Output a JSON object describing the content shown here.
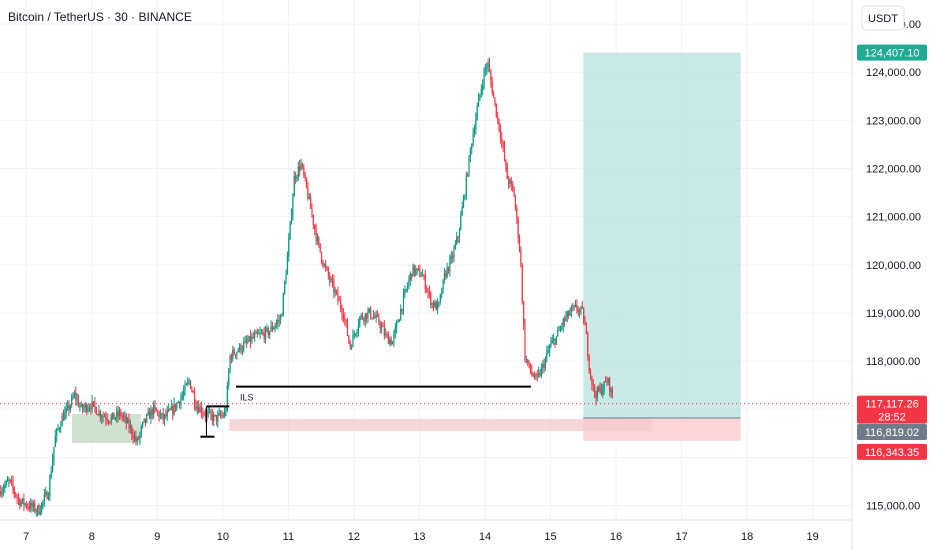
{
  "header": {
    "title": "Bitcoin / TetherUS · 30 · BINANCE"
  },
  "currency_button": {
    "label": "USDT"
  },
  "colors": {
    "up": "#089981",
    "down": "#f23645",
    "target_zone": "#b2dfdb",
    "stop_zone": "#fccbcd",
    "range_green": "#c8dcc8",
    "range_red": "#f4c9cd",
    "target_label": "#22ab94",
    "entry_label": "#707a8a",
    "grid": "#f0f3fa",
    "text": "#131722"
  },
  "chart_data": {
    "type": "candlestick",
    "symbol": "Bitcoin / TetherUS",
    "timeframe": "30",
    "exchange": "BINANCE",
    "currency": "USDT",
    "xlim": [
      6.6,
      19.6
    ],
    "ylim": [
      114700,
      125500
    ],
    "y_ticks": [
      {
        "value": 115000,
        "label": "115,000.00"
      },
      {
        "value": 116000,
        "label": ""
      },
      {
        "value": 117000,
        "label": ""
      },
      {
        "value": 118000,
        "label": "118,000.00"
      },
      {
        "value": 119000,
        "label": "119,000.00"
      },
      {
        "value": 120000,
        "label": "120,000.00"
      },
      {
        "value": 121000,
        "label": "121,000.00"
      },
      {
        "value": 122000,
        "label": "122,000.00"
      },
      {
        "value": 123000,
        "label": "123,000.00"
      },
      {
        "value": 124000,
        "label": "124,000.00"
      },
      {
        "value": 125000,
        "label": "125,000.00"
      }
    ],
    "x_ticks": [
      {
        "value": 7,
        "label": "7"
      },
      {
        "value": 8,
        "label": "8"
      },
      {
        "value": 9,
        "label": "9"
      },
      {
        "value": 10,
        "label": "10"
      },
      {
        "value": 11,
        "label": "11"
      },
      {
        "value": 12,
        "label": "12"
      },
      {
        "value": 13,
        "label": "13"
      },
      {
        "value": 14,
        "label": "14"
      },
      {
        "value": 15,
        "label": "15"
      },
      {
        "value": 16,
        "label": "16"
      },
      {
        "value": 17,
        "label": "17"
      },
      {
        "value": 18,
        "label": "18"
      },
      {
        "value": 19,
        "label": "19"
      }
    ],
    "price_path": [
      [
        6.6,
        115300
      ],
      [
        6.75,
        115500
      ],
      [
        6.9,
        115100
      ],
      [
        7.05,
        115000
      ],
      [
        7.2,
        114900
      ],
      [
        7.35,
        115300
      ],
      [
        7.45,
        116400
      ],
      [
        7.55,
        116800
      ],
      [
        7.65,
        117000
      ],
      [
        7.75,
        117300
      ],
      [
        7.85,
        117000
      ],
      [
        8.0,
        117100
      ],
      [
        8.15,
        116900
      ],
      [
        8.3,
        116800
      ],
      [
        8.45,
        116900
      ],
      [
        8.6,
        116600
      ],
      [
        8.7,
        116300
      ],
      [
        8.8,
        116700
      ],
      [
        8.95,
        117000
      ],
      [
        9.1,
        116800
      ],
      [
        9.25,
        117000
      ],
      [
        9.4,
        117300
      ],
      [
        9.5,
        117600
      ],
      [
        9.6,
        117100
      ],
      [
        9.75,
        116900
      ],
      [
        9.9,
        116800
      ],
      [
        10.05,
        116900
      ],
      [
        10.12,
        118100
      ],
      [
        10.3,
        118300
      ],
      [
        10.5,
        118500
      ],
      [
        10.7,
        118600
      ],
      [
        10.9,
        118900
      ],
      [
        11.0,
        120200
      ],
      [
        11.1,
        121800
      ],
      [
        11.2,
        122100
      ],
      [
        11.3,
        121500
      ],
      [
        11.45,
        120500
      ],
      [
        11.55,
        120000
      ],
      [
        11.7,
        119500
      ],
      [
        11.85,
        119000
      ],
      [
        11.95,
        118300
      ],
      [
        12.1,
        118900
      ],
      [
        12.25,
        119000
      ],
      [
        12.4,
        118800
      ],
      [
        12.5,
        118500
      ],
      [
        12.6,
        118400
      ],
      [
        12.75,
        119200
      ],
      [
        12.9,
        119900
      ],
      [
        13.05,
        119800
      ],
      [
        13.2,
        119200
      ],
      [
        13.3,
        119100
      ],
      [
        13.4,
        119800
      ],
      [
        13.5,
        120100
      ],
      [
        13.6,
        120600
      ],
      [
        13.7,
        121500
      ],
      [
        13.8,
        122500
      ],
      [
        13.9,
        123300
      ],
      [
        14.0,
        124000
      ],
      [
        14.05,
        124200
      ],
      [
        14.15,
        123400
      ],
      [
        14.25,
        122700
      ],
      [
        14.35,
        121800
      ],
      [
        14.45,
        121500
      ],
      [
        14.55,
        120200
      ],
      [
        14.62,
        118100
      ],
      [
        14.7,
        117800
      ],
      [
        14.8,
        117600
      ],
      [
        14.9,
        117900
      ],
      [
        15.0,
        118300
      ],
      [
        15.1,
        118500
      ],
      [
        15.2,
        118800
      ],
      [
        15.3,
        119000
      ],
      [
        15.4,
        119100
      ],
      [
        15.5,
        119000
      ],
      [
        15.55,
        118600
      ],
      [
        15.6,
        117900
      ],
      [
        15.68,
        117300
      ],
      [
        15.78,
        117400
      ],
      [
        15.88,
        117600
      ],
      [
        15.95,
        117300
      ]
    ],
    "annotations": {
      "ils_label": "ILS",
      "ils_line": {
        "x1": 10.2,
        "x2": 14.7,
        "y": 117470
      },
      "range_green": {
        "x1": 7.7,
        "x2": 8.75,
        "y1": 116300,
        "y2": 116900
      },
      "range_red": {
        "x1": 10.1,
        "x2": 16.55,
        "y1": 116550,
        "y2": 116800
      },
      "small_bracket": {
        "x1": 9.75,
        "x2": 10.1,
        "y_top": 117060,
        "y_bottom": 116430
      },
      "position": {
        "x1": 15.5,
        "x2": 17.9,
        "entry": 116819.02,
        "target": 124407.1,
        "stop": 116343.35
      }
    },
    "price_labels": {
      "target": "124,407.10",
      "current": "117,117.26",
      "countdown": "28:52",
      "entry": "116,819.02",
      "stop": "116,343.35"
    },
    "current_price": 117117.26
  }
}
